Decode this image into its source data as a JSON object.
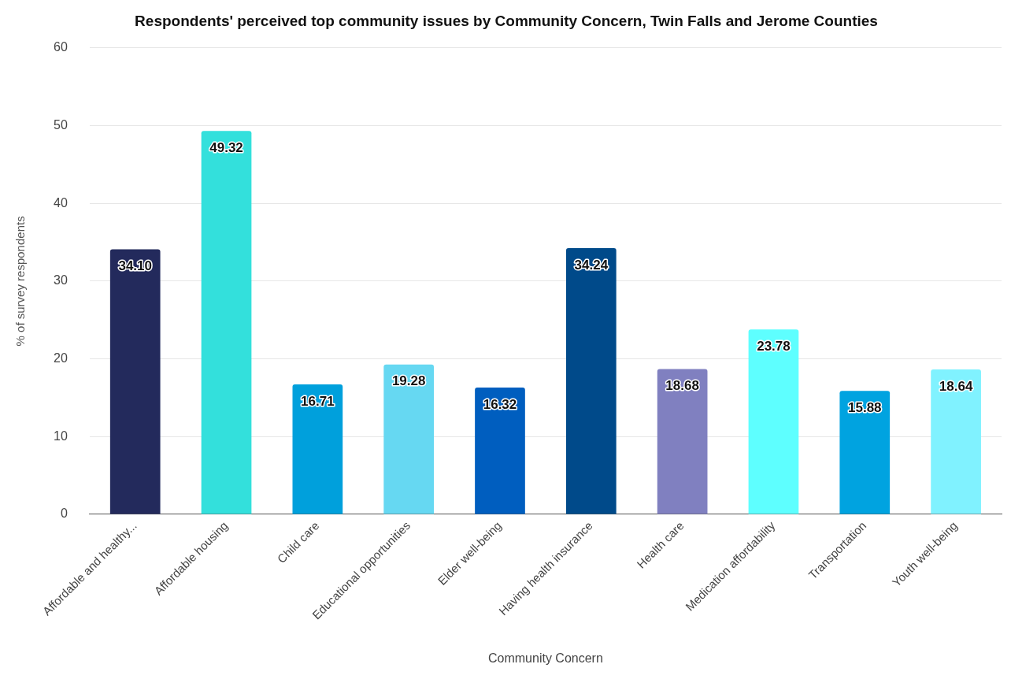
{
  "chart_data": {
    "type": "bar",
    "title": "Respondents' perceived top community issues by Community Concern, Twin Falls and Jerome Counties",
    "xlabel": "Community Concern",
    "ylabel": "% of survey respondents",
    "categories": [
      "Affordable and healthy...",
      "Affordable housing",
      "Child care",
      "Educational opportunities",
      "Elder well-being",
      "Having health insurance",
      "Health care",
      "Medication affordability",
      "Transportation",
      "Youth well-being"
    ],
    "values": [
      34.1,
      49.32,
      16.71,
      19.28,
      16.32,
      34.24,
      18.68,
      23.78,
      15.88,
      18.64
    ],
    "value_labels": [
      "34.10",
      "49.32",
      "16.71",
      "19.28",
      "16.32",
      "34.24",
      "18.68",
      "23.78",
      "15.88",
      "18.64"
    ],
    "colors": [
      "#232a5c",
      "#33e0dc",
      "#00a0dc",
      "#66d8f2",
      "#005ebf",
      "#004a8a",
      "#8080c0",
      "#5effff",
      "#00a3e0",
      "#80f2ff"
    ],
    "ylim": [
      0,
      60
    ],
    "yticks": [
      0,
      10,
      20,
      30,
      40,
      50,
      60
    ],
    "grid": "y",
    "legend": false
  }
}
